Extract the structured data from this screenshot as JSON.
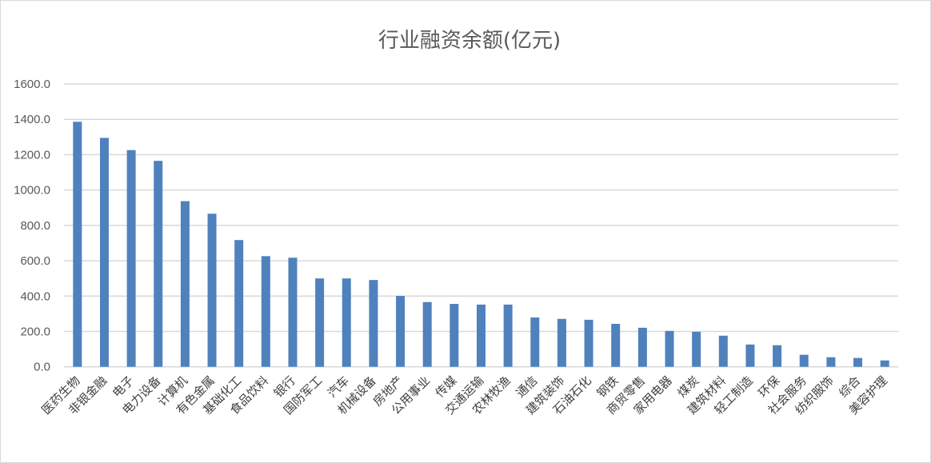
{
  "chart_data": {
    "type": "bar",
    "title": "行业融资余额(亿元)",
    "xlabel": "",
    "ylabel": "",
    "ylim": [
      0,
      1600
    ],
    "yticks": [
      "0.0",
      "200.0",
      "400.0",
      "600.0",
      "800.0",
      "1000.0",
      "1200.0",
      "1400.0",
      "1600.0"
    ],
    "grid": true,
    "color": "#4f81bd",
    "categories": [
      "医药生物",
      "非银金融",
      "电子",
      "电力设备",
      "计算机",
      "有色金属",
      "基础化工",
      "食品饮料",
      "银行",
      "国防军工",
      "汽车",
      "机械设备",
      "房地产",
      "公用事业",
      "传媒",
      "交通运输",
      "农林牧渔",
      "通信",
      "建筑装饰",
      "石油石化",
      "钢铁",
      "商贸零售",
      "家用电器",
      "煤炭",
      "建筑材料",
      "轻工制造",
      "环保",
      "社会服务",
      "纺织服饰",
      "综合",
      "美容护理"
    ],
    "values": [
      1386,
      1295,
      1226,
      1165,
      937,
      866,
      717,
      626,
      617,
      500,
      500,
      491,
      401,
      366,
      356,
      352,
      352,
      279,
      271,
      266,
      243,
      221,
      203,
      198,
      176,
      126,
      122,
      68,
      54,
      50,
      36
    ]
  }
}
